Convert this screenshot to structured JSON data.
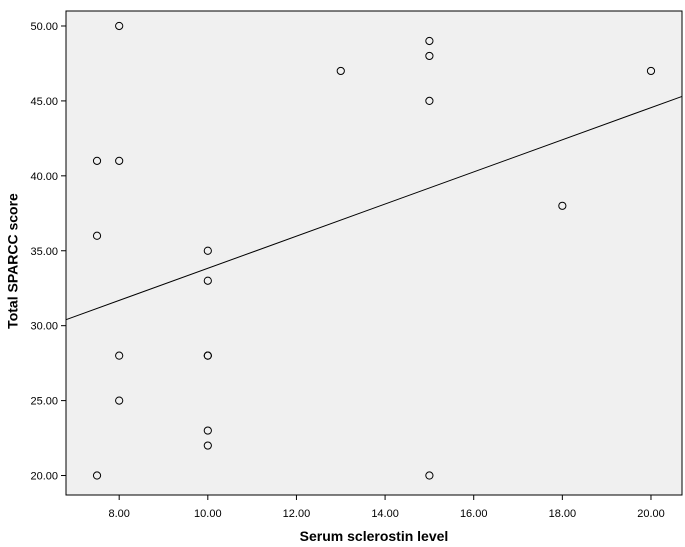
{
  "chart_data": {
    "type": "scatter",
    "title": "",
    "xlabel": "Serum sclerostin level",
    "ylabel": "Total SPARCC score",
    "xlim": [
      6.8,
      20.7
    ],
    "ylim": [
      18.7,
      51.0
    ],
    "x_ticks": [
      8,
      10,
      12,
      14,
      16,
      18,
      20
    ],
    "x_tick_labels": [
      "8.00",
      "10.00",
      "12.00",
      "14.00",
      "16.00",
      "18.00",
      "20.00"
    ],
    "y_ticks": [
      20,
      25,
      30,
      35,
      40,
      45,
      50
    ],
    "y_tick_labels": [
      "20.00",
      "25.00",
      "30.00",
      "35.00",
      "40.00",
      "45.00",
      "50.00"
    ],
    "grid": false,
    "legend": "none",
    "series": [
      {
        "points": [
          {
            "x": 7.5,
            "y": 41
          },
          {
            "x": 7.5,
            "y": 36
          },
          {
            "x": 7.5,
            "y": 20
          },
          {
            "x": 8.0,
            "y": 50
          },
          {
            "x": 8.0,
            "y": 41
          },
          {
            "x": 8.0,
            "y": 28
          },
          {
            "x": 8.0,
            "y": 25
          },
          {
            "x": 10.0,
            "y": 35
          },
          {
            "x": 10.0,
            "y": 33
          },
          {
            "x": 10.0,
            "y": 28
          },
          {
            "x": 10.0,
            "y": 28
          },
          {
            "x": 10.0,
            "y": 23
          },
          {
            "x": 10.0,
            "y": 22
          },
          {
            "x": 13.0,
            "y": 47
          },
          {
            "x": 15.0,
            "y": 49
          },
          {
            "x": 15.0,
            "y": 48
          },
          {
            "x": 15.0,
            "y": 45
          },
          {
            "x": 15.0,
            "y": 20
          },
          {
            "x": 18.0,
            "y": 38
          },
          {
            "x": 20.0,
            "y": 47
          }
        ]
      }
    ],
    "fit_line": {
      "x": [
        6.8,
        20.7
      ],
      "y": [
        30.4,
        45.3
      ]
    },
    "colors": {
      "plot_background": "#f0f0f0",
      "page_background": "#ffffff",
      "marker_edge": "#000000",
      "line": "#000000"
    }
  }
}
